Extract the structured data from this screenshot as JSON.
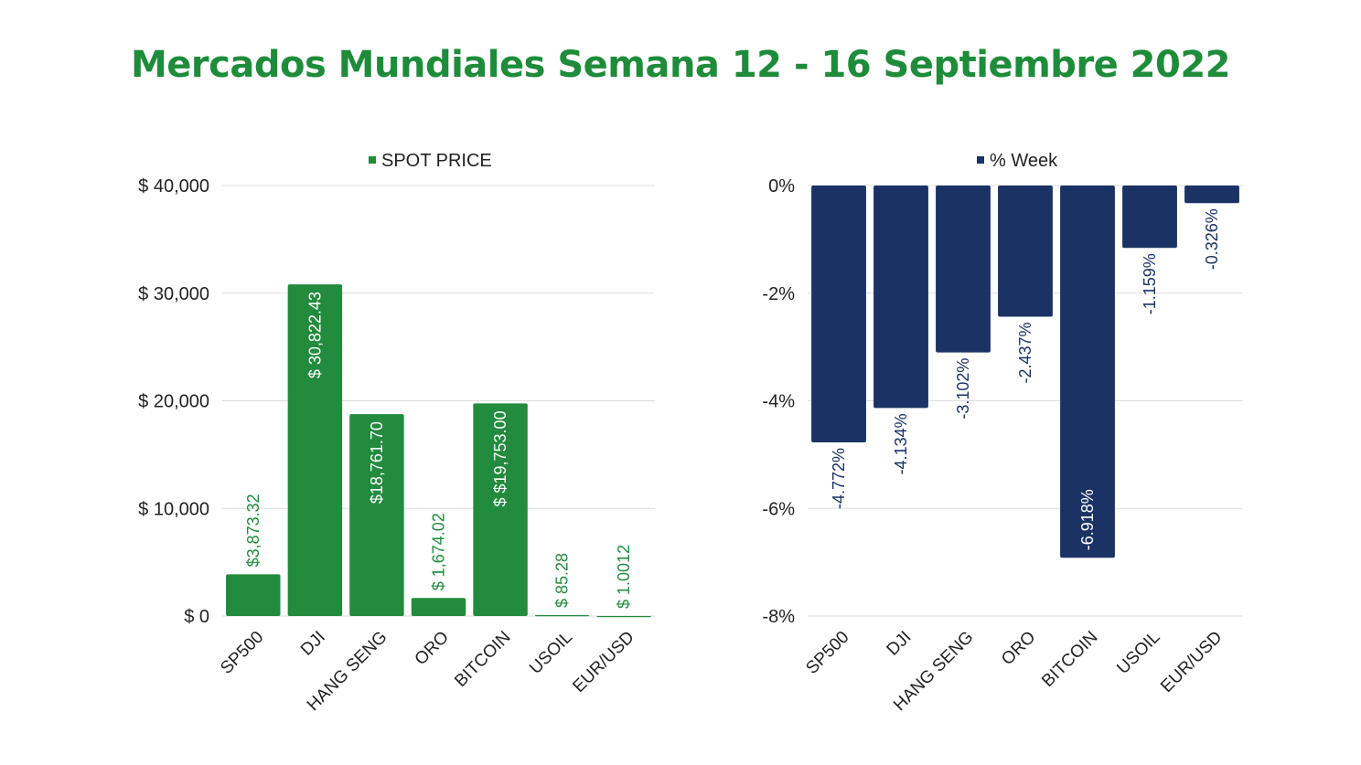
{
  "page": {
    "title": "Mercados Mundiales Semana 12 - 16 Septiembre 2022"
  },
  "chart_data": [
    {
      "type": "bar",
      "legend": "SPOT PRICE",
      "legend_position": "top",
      "color": "#228b3d",
      "categories": [
        "SP500",
        "DJI",
        "HANG SENG",
        "ORO",
        "BITCOIN",
        "USOIL",
        "EUR/USD"
      ],
      "values": [
        3873.32,
        30822.43,
        18761.7,
        1674.02,
        19753.0,
        85.28,
        1.0012
      ],
      "data_labels": [
        "$3,873.32",
        "$ 30,822.43",
        "$18,761.70",
        "$ 1,674.02",
        "$ $19,753.00",
        "$ 85.28",
        "$ 1.0012"
      ],
      "label_inside": [
        false,
        true,
        true,
        false,
        true,
        false,
        false
      ],
      "ylim": [
        0,
        40000
      ],
      "y_ticks": [
        0,
        10000,
        20000,
        30000,
        40000
      ],
      "y_tick_labels": [
        "$    0",
        "$   10,000",
        "$   20,000",
        "$   30,000",
        "$   40,000"
      ],
      "grid": true
    },
    {
      "type": "bar",
      "legend": "% Week",
      "legend_position": "top",
      "color": "#1b3364",
      "categories": [
        "SP500",
        "DJI",
        "HANG SENG",
        "ORO",
        "BITCOIN",
        "USOIL",
        "EUR/USD"
      ],
      "values": [
        -4.772,
        -4.134,
        -3.102,
        -2.437,
        -6.918,
        -1.159,
        -0.326
      ],
      "data_labels": [
        "-4.772%",
        "-4.134%",
        "-3.102%",
        "-2.437%",
        "-6.918%",
        "-1.159%",
        "-0.326%"
      ],
      "label_inside": [
        false,
        false,
        false,
        false,
        true,
        false,
        false
      ],
      "ylim": [
        -8,
        0
      ],
      "y_ticks": [
        0,
        -2,
        -4,
        -6,
        -8
      ],
      "y_tick_labels": [
        "0%",
        "-2%",
        "-4%",
        "-6%",
        "-8%"
      ],
      "grid": true
    }
  ]
}
